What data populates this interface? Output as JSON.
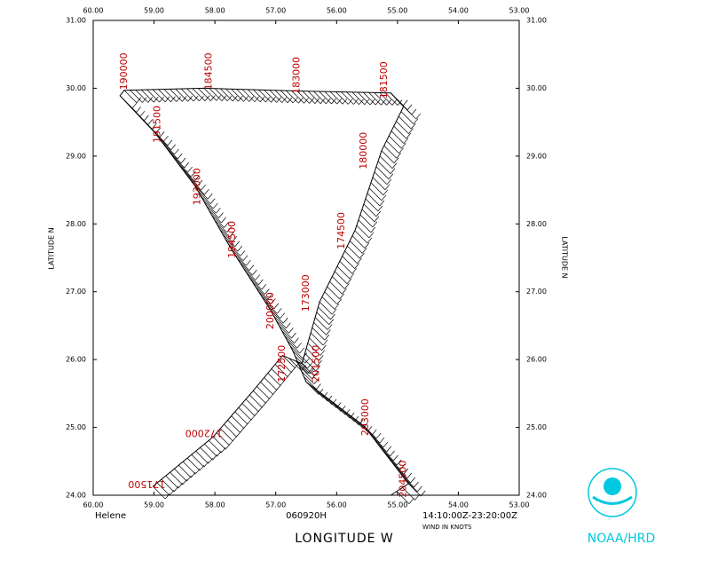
{
  "chart_data": {
    "type": "track",
    "storm": "Helene",
    "date": "060920H",
    "time_range": "14:10:00Z-23:20:00Z",
    "wind_note": "WIND IN KNOTS",
    "xlabel": "LONGITUDE   W",
    "ylabel": "LATITUDE   N",
    "logo": "NOAA/HRD",
    "xlim": [
      60,
      53
    ],
    "ylim": [
      24,
      31
    ],
    "xticks": [
      {
        "value": 60,
        "label": "60.00"
      },
      {
        "value": 59,
        "label": "59.00"
      },
      {
        "value": 58,
        "label": "58.00"
      },
      {
        "value": 57,
        "label": "57.00"
      },
      {
        "value": 56,
        "label": "56.00"
      },
      {
        "value": 55,
        "label": "55.00"
      },
      {
        "value": 54,
        "label": "54.00"
      },
      {
        "value": 53,
        "label": "53.00"
      }
    ],
    "yticks": [
      {
        "value": 24,
        "label": "24.00"
      },
      {
        "value": 25,
        "label": "25.00"
      },
      {
        "value": 26,
        "label": "26.00"
      },
      {
        "value": 27,
        "label": "27.00"
      },
      {
        "value": 28,
        "label": "28.00"
      },
      {
        "value": 29,
        "label": "29.00"
      },
      {
        "value": 30,
        "label": "30.00"
      },
      {
        "value": 31,
        "label": "31.00"
      }
    ],
    "track": {
      "lon": [
        59.02,
        58.03,
        57.37,
        56.89,
        56.57,
        56.28,
        55.7,
        55.26,
        54.9,
        55.11,
        56.65,
        58.18,
        59.49,
        59.56,
        58.98,
        58.32,
        57.74,
        57.08,
        56.72,
        56.5,
        55.55,
        54.82,
        55.11
      ],
      "lat": [
        24.13,
        24.86,
        25.54,
        26.06,
        25.94,
        26.85,
        27.9,
        29.08,
        29.73,
        29.93,
        29.96,
        30.0,
        29.97,
        29.89,
        29.34,
        28.55,
        27.64,
        26.72,
        26.13,
        25.67,
        25.02,
        24.17,
        24.0
      ]
    },
    "time_labels": [
      {
        "text": "171500",
        "lon": 59.12,
        "lat": 24.17
      },
      {
        "text": "172000",
        "lon": 58.18,
        "lat": 24.92
      },
      {
        "text": "172500",
        "lon": 56.89,
        "lat": 25.94
      },
      {
        "text": "173000",
        "lon": 56.5,
        "lat": 26.98
      },
      {
        "text": "174500",
        "lon": 55.92,
        "lat": 27.9
      },
      {
        "text": "180000",
        "lon": 55.55,
        "lat": 29.08
      },
      {
        "text": "181500",
        "lon": 55.22,
        "lat": 30.12
      },
      {
        "text": "183000",
        "lon": 56.65,
        "lat": 30.19
      },
      {
        "text": "184500",
        "lon": 58.1,
        "lat": 30.25
      },
      {
        "text": "190000",
        "lon": 59.49,
        "lat": 30.25
      },
      {
        "text": "191500",
        "lon": 58.94,
        "lat": 29.47
      },
      {
        "text": "193000",
        "lon": 58.29,
        "lat": 28.55
      },
      {
        "text": "194500",
        "lon": 57.71,
        "lat": 27.77
      },
      {
        "text": "200000",
        "lon": 57.08,
        "lat": 26.72
      },
      {
        "text": "201500",
        "lon": 56.33,
        "lat": 25.94
      },
      {
        "text": "203000",
        "lon": 55.52,
        "lat": 25.15
      },
      {
        "text": "204500",
        "lon": 54.9,
        "lat": 24.24
      }
    ]
  }
}
